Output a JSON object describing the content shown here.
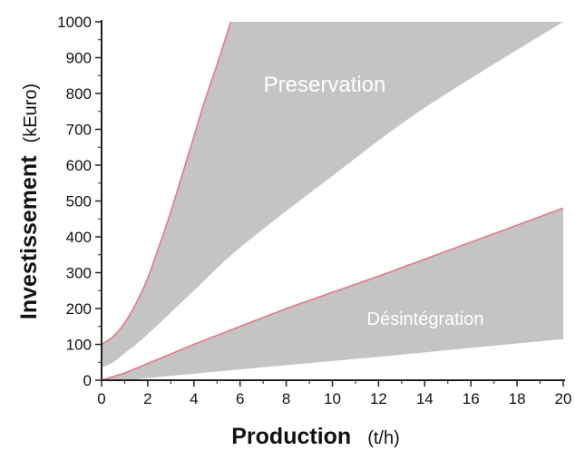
{
  "chart_data": {
    "type": "area",
    "title": "",
    "xlabel": "Production",
    "xlabel_unit": "(t/h)",
    "ylabel": "Investissement",
    "ylabel_unit": "(kEuro)",
    "xlim": [
      0,
      20
    ],
    "ylim": [
      0,
      1000
    ],
    "x_ticks": [
      "0",
      "2",
      "4",
      "6",
      "8",
      "10",
      "12",
      "14",
      "16",
      "18",
      "20"
    ],
    "y_ticks": [
      "0",
      "100",
      "200",
      "300",
      "400",
      "500",
      "600",
      "700",
      "800",
      "900",
      "1000"
    ],
    "grid": false,
    "legend": "none",
    "colors": {
      "fill": "#c4c4c4",
      "boundary": "#e07a86",
      "axis": "#222222",
      "label": "#ffffff"
    },
    "regions": [
      {
        "name": "Preservation",
        "upper": {
          "x": [
            0,
            0.5,
            1,
            1.5,
            2,
            2.5,
            3,
            3.5,
            4,
            4.5,
            5,
            5.6,
            20
          ],
          "y": [
            100,
            122,
            160,
            215,
            285,
            375,
            470,
            575,
            680,
            785,
            880,
            1000,
            1000
          ]
        },
        "lower": {
          "x": [
            0,
            0.5,
            1,
            2,
            4,
            6,
            10,
            14,
            20
          ],
          "y": [
            35,
            50,
            75,
            128,
            250,
            370,
            570,
            760,
            1000
          ]
        }
      },
      {
        "name": "Désintégration",
        "upper": {
          "x": [
            0,
            1,
            4,
            8,
            12,
            16,
            20
          ],
          "y": [
            0,
            20,
            100,
            200,
            290,
            385,
            480
          ]
        },
        "lower": {
          "x": [
            1,
            4,
            8,
            12,
            16,
            20
          ],
          "y": [
            0,
            18,
            42,
            65,
            90,
            115
          ]
        }
      }
    ]
  }
}
